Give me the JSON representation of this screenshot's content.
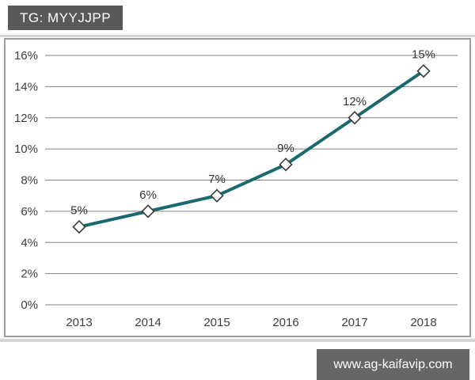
{
  "header": {
    "badge_label": "TG: MYYJJPP"
  },
  "footer": {
    "watermark": "www.ag-kaifavip.com"
  },
  "colors": {
    "badge_bg": "#595959",
    "badge_text": "#ffffff",
    "watermark_bg": "#666666",
    "watermark_text": "#ffffff",
    "line": "#1a696e",
    "marker_fill": "#ffffff",
    "marker_stroke": "#3c3c3c",
    "gridline": "#808080",
    "frame_border": "#9d9d9d",
    "axis_text": "#404040",
    "data_label_text": "#333333",
    "divider": "#d6d6d6"
  },
  "chart_data": {
    "type": "line",
    "title": "",
    "xlabel": "",
    "ylabel": "",
    "categories": [
      "2013",
      "2014",
      "2015",
      "2016",
      "2017",
      "2018"
    ],
    "values": [
      5,
      6,
      7,
      9,
      12,
      15
    ],
    "data_labels": [
      "5%",
      "6%",
      "7%",
      "9%",
      "12%",
      "15%"
    ],
    "y_tick_values": [
      0,
      2,
      4,
      6,
      8,
      10,
      12,
      14,
      16
    ],
    "y_tick_labels": [
      "0%",
      "2%",
      "4%",
      "6%",
      "8%",
      "10%",
      "12%",
      "14%",
      "16%"
    ],
    "ylim": [
      0,
      16
    ],
    "grid": true,
    "legend_position": "none",
    "marker": "diamond"
  }
}
